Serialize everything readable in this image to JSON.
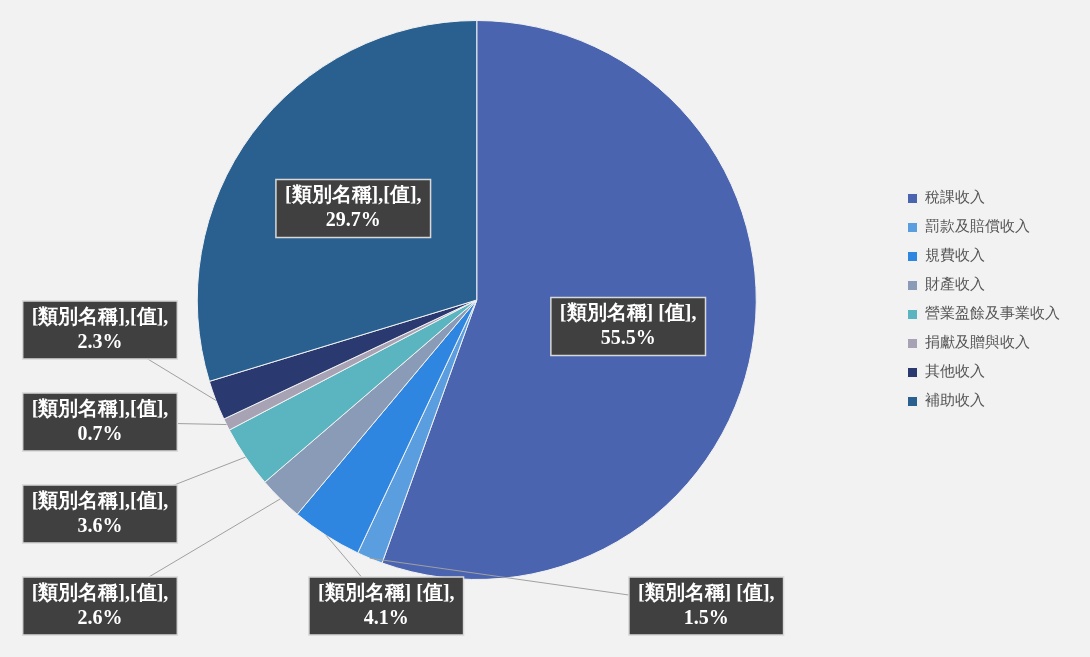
{
  "chart_data": {
    "type": "pie",
    "categories": [
      "稅課收入",
      "罰款及賠償收入",
      "規費收入",
      "財產收入",
      "營業盈餘及事業收入",
      "捐獻及贈與收入",
      "其他收入",
      "補助收入"
    ],
    "values": [
      55.5,
      1.5,
      4.1,
      2.6,
      3.6,
      0.7,
      2.3,
      29.7
    ],
    "colors": [
      "#4a64b0",
      "#5a9ee0",
      "#2f86e0",
      "#8a9bb8",
      "#5bb5c0",
      "#a7a2b4",
      "#2a3a70",
      "#2a6090"
    ],
    "value_labels": [
      "[類別名稱] [值],\n55.5%",
      "[類別名稱] [值],\n1.5%",
      "[類別名稱] [值],\n4.1%",
      "[類別名稱],[值],\n2.6%",
      "[類別名稱],[值],\n3.6%",
      "[類別名稱],[值],\n0.7%",
      "[類別名稱],[值],\n2.3%",
      "[類別名稱],[值],\n29.7%"
    ],
    "legend": "right"
  }
}
